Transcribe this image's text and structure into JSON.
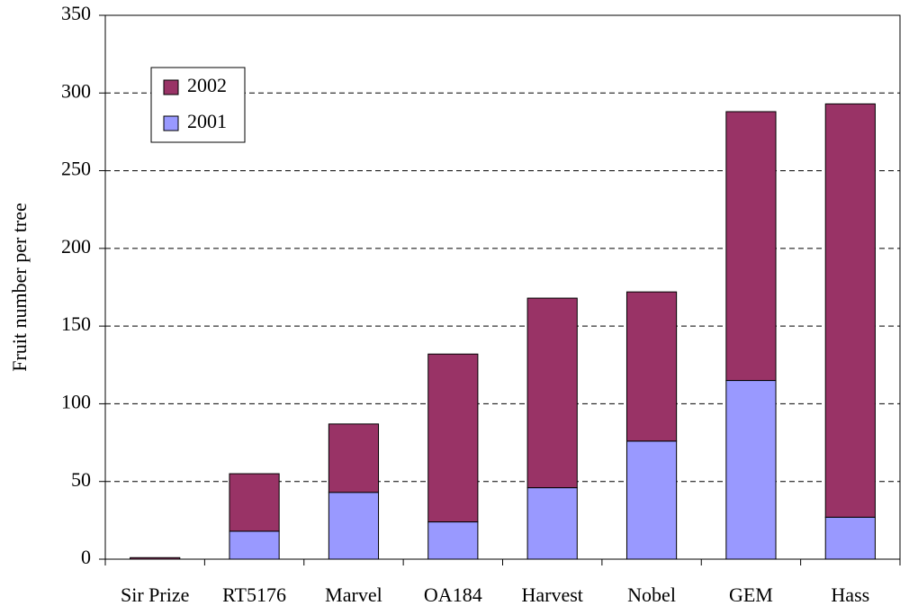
{
  "chart_data": {
    "type": "bar",
    "stacked": true,
    "y_label": "Fruit number per tree",
    "categories": [
      "Sir Prize",
      "RT5176",
      "Marvel",
      "OA184",
      "Harvest",
      "Nobel",
      "GEM",
      "Hass"
    ],
    "series": [
      {
        "name": "2001",
        "color": "#9999ff",
        "values": [
          0,
          18,
          43,
          24,
          46,
          76,
          115,
          27
        ]
      },
      {
        "name": "2002",
        "color": "#993366",
        "values": [
          1,
          37,
          44,
          108,
          122,
          96,
          173,
          266
        ]
      }
    ],
    "ylim": [
      0,
      350
    ],
    "yticks": [
      0,
      50,
      100,
      150,
      200,
      250,
      300,
      350
    ],
    "grid": true,
    "legend": "upper left"
  }
}
